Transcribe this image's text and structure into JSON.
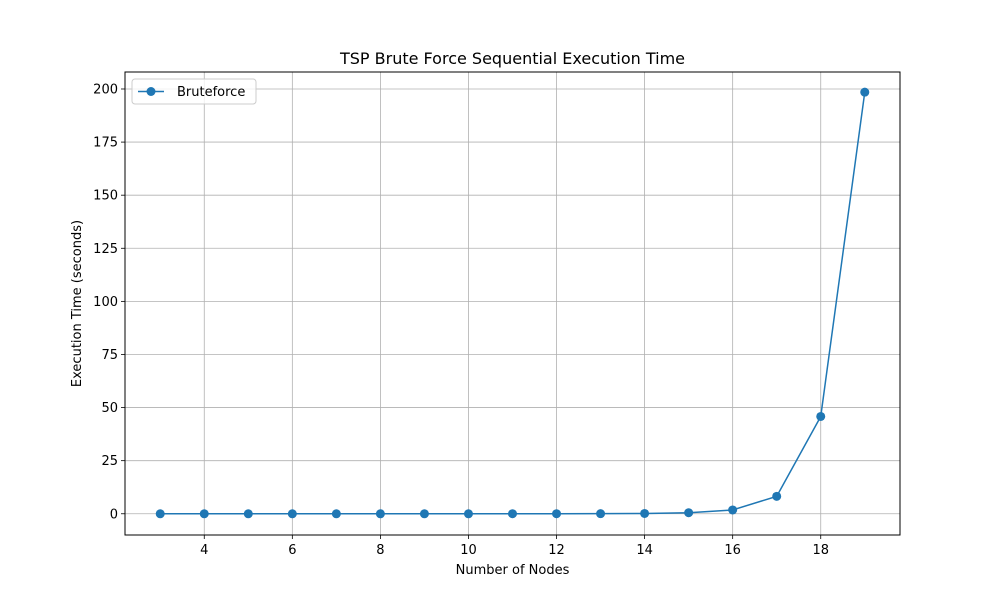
{
  "chart_data": {
    "type": "line",
    "title": "TSP Brute Force Sequential Execution Time",
    "xlabel": "Number of Nodes",
    "ylabel": "Execution Time (seconds)",
    "xlim": [
      2.2,
      19.8
    ],
    "ylim": [
      -10,
      208
    ],
    "xticks": [
      4,
      6,
      8,
      10,
      12,
      14,
      16,
      18
    ],
    "yticks": [
      0,
      25,
      50,
      75,
      100,
      125,
      150,
      175,
      200
    ],
    "grid": true,
    "legend": "top-left",
    "series": [
      {
        "name": "Bruteforce",
        "color": "#1f77b4",
        "marker": "circle",
        "x": [
          3,
          4,
          5,
          6,
          7,
          8,
          9,
          10,
          11,
          12,
          13,
          14,
          15,
          16,
          17,
          18,
          19
        ],
        "values": [
          0,
          0,
          0,
          0,
          0,
          0,
          0,
          0,
          0.01,
          0.03,
          0.05,
          0.15,
          0.5,
          1.8,
          8.2,
          45.8,
          198.5
        ]
      }
    ]
  }
}
